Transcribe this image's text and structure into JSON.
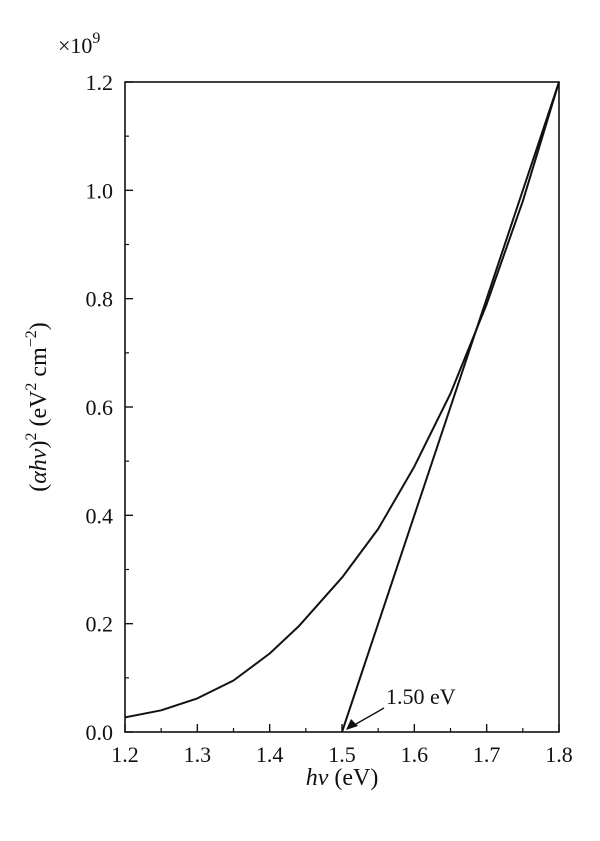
{
  "chart_data": {
    "type": "line",
    "title": "",
    "xlabel": {
      "italic": "hν",
      "rest": " (eV)"
    },
    "ylabel": {
      "prefix": "(",
      "italic": "αhν",
      "suffix": ")",
      "sup": "2",
      "units": " (eV",
      "units_sup1": "2",
      "units_mid": " cm",
      "units_sup2": "−2",
      "units_end": ")"
    },
    "y_multiplier": {
      "base": "×10",
      "exp": "9"
    },
    "xlim": [
      1.2,
      1.8
    ],
    "ylim": [
      0.0,
      1.2
    ],
    "x_ticks": [
      "1.2",
      "1.3",
      "1.4",
      "1.5",
      "1.6",
      "1.7",
      "1.8"
    ],
    "y_ticks": [
      "0.0",
      "0.2",
      "0.4",
      "0.6",
      "0.8",
      "1.0",
      "1.2"
    ],
    "grid": false,
    "series": [
      {
        "kind": "absorption-curve",
        "color": "#111111",
        "x": [
          1.2,
          1.25,
          1.3,
          1.35,
          1.4,
          1.44,
          1.5,
          1.55,
          1.6,
          1.65,
          1.7,
          1.75,
          1.8
        ],
        "y": [
          0.027,
          0.04,
          0.062,
          0.095,
          0.145,
          0.195,
          0.285,
          0.375,
          0.49,
          0.625,
          0.79,
          0.98,
          1.2
        ]
      },
      {
        "kind": "tangent-line",
        "color": "#111111",
        "x": [
          1.5,
          1.8
        ],
        "y": [
          0.0,
          1.2
        ]
      }
    ],
    "annotations": [
      {
        "text": "1.50 eV",
        "x": 1.5,
        "y": 0.0
      }
    ]
  }
}
